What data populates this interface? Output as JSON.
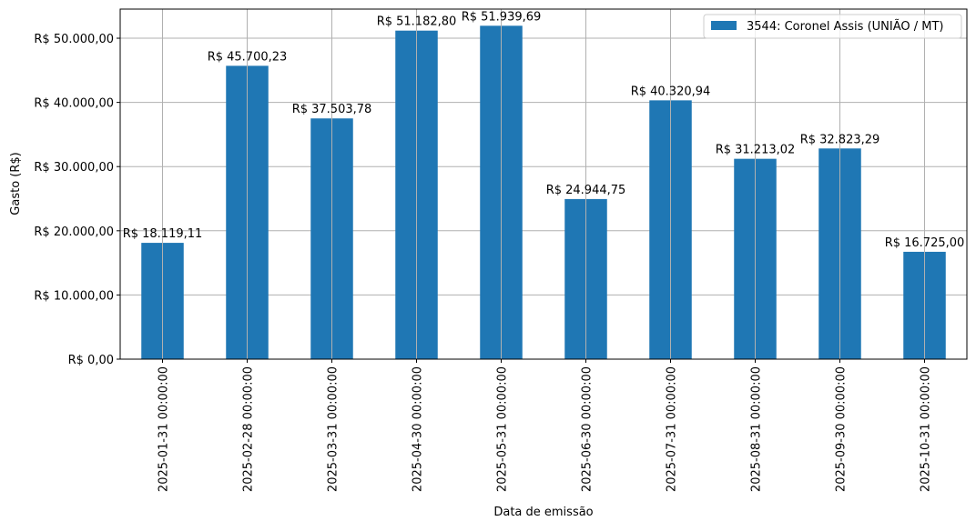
{
  "chart_data": {
    "type": "bar",
    "title": "",
    "xlabel": "Data de emissão",
    "ylabel": "Gasto (R$)",
    "categories": [
      "2025-01-31 00:00:00",
      "2025-02-28 00:00:00",
      "2025-03-31 00:00:00",
      "2025-04-30 00:00:00",
      "2025-05-31 00:00:00",
      "2025-06-30 00:00:00",
      "2025-07-31 00:00:00",
      "2025-08-31 00:00:00",
      "2025-09-30 00:00:00",
      "2025-10-31 00:00:00"
    ],
    "series": [
      {
        "name": "3544: Coronel Assis (UNIÃO / MT)",
        "color": "#1f77b4",
        "values": [
          18119.11,
          45700.23,
          37503.78,
          51182.8,
          51939.69,
          24944.75,
          40320.94,
          31213.02,
          32823.29,
          16725.0
        ],
        "data_labels": [
          "R$ 18.119,11",
          "R$ 45.700,23",
          "R$ 37.503,78",
          "R$ 51.182,80",
          "R$ 51.939,69",
          "R$ 24.944,75",
          "R$ 40.320,94",
          "R$ 31.213,02",
          "R$ 32.823,29",
          "R$ 16.725,00"
        ]
      }
    ],
    "ylim": [
      0,
      54536.67
    ],
    "yticks": [
      0,
      10000,
      20000,
      30000,
      40000,
      50000
    ],
    "ytick_labels": [
      "R$ 0,00",
      "R$ 10.000,00",
      "R$ 20.000,00",
      "R$ 30.000,00",
      "R$ 40.000,00",
      "R$ 50.000,00"
    ],
    "grid": true,
    "legend_position": "top-right",
    "x_tick_rotation": "vertical"
  }
}
